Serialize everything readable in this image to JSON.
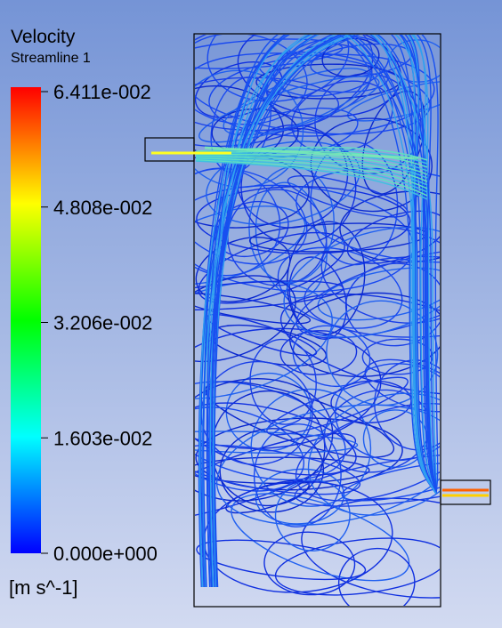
{
  "legend": {
    "title": "Velocity",
    "subtitle": "Streamline 1",
    "ticks": [
      "6.411e-002",
      "4.808e-002",
      "3.206e-002",
      "1.603e-002",
      "0.000e+000"
    ],
    "unit": "[m s^-1]"
  }
}
